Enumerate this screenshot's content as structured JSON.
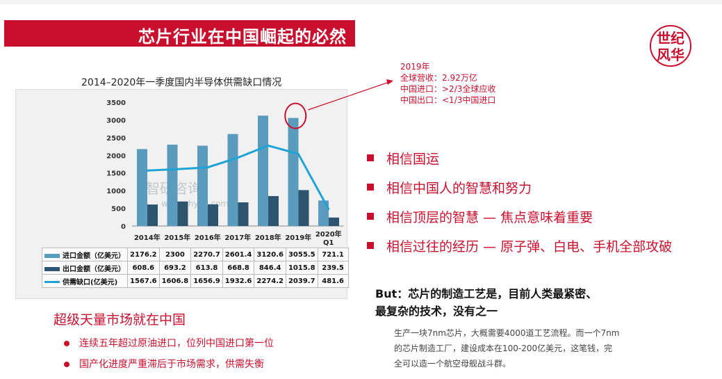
{
  "header": {
    "title": "芯片行业在中国崛起的必然",
    "logo_text_1": "世纪",
    "logo_text_2": "风华"
  },
  "chart_data": {
    "type": "bar",
    "title": "2014–2020年一季度国内半导体供需缺口情况",
    "categories": [
      "2014年",
      "2015年",
      "2016年",
      "2017年",
      "2018年",
      "2019年",
      "2020年Q1"
    ],
    "category_labels": [
      [
        "2014年"
      ],
      [
        "2015年"
      ],
      [
        "2016年"
      ],
      [
        "2017年"
      ],
      [
        "2018年"
      ],
      [
        "2019年"
      ],
      [
        "2020年",
        "Q1"
      ]
    ],
    "series": [
      {
        "name": "进口金额（亿美元）",
        "type": "bar",
        "color": "#5b9bbd",
        "values": [
          2176.2,
          2300,
          2270.7,
          2601.4,
          3120.6,
          3055.5,
          721.1
        ]
      },
      {
        "name": "出口金额（亿美元）",
        "type": "bar",
        "color": "#2f5470",
        "values": [
          608.6,
          693.2,
          613.8,
          668.8,
          846.4,
          1015.8,
          239.5
        ]
      },
      {
        "name": "供需缺口(亿美元)",
        "type": "line",
        "color": "#1ea3d6",
        "values": [
          1567.6,
          1606.8,
          1656.9,
          1932.6,
          2274.2,
          2039.7,
          481.6
        ]
      }
    ],
    "value_labels": [
      [
        "2176.2",
        "2300",
        "2270.7",
        "2601.4",
        "3120.6",
        "3055.5",
        "721.1"
      ],
      [
        "608.6",
        "693.2",
        "613.8",
        "668.8",
        "846.4",
        "1015.8",
        "239.5"
      ],
      [
        "1567.6",
        "1606.8",
        "1656.9",
        "1932.6",
        "2274.2",
        "2039.7",
        "481.6"
      ]
    ],
    "yticks": [
      "3500",
      "3000",
      "2500",
      "2000",
      "1500",
      "1000",
      "500",
      "0"
    ],
    "ylim": [
      0,
      3500
    ],
    "grid": false,
    "watermark_1": "智研咨询",
    "watermark_2": "www.chyxx.com",
    "highlight_category": "2019年"
  },
  "annotation": {
    "lines": [
      "2019年",
      "全球营收：2.92万亿",
      "中国进口：>2/3全球应收",
      "中国出口：<1/3中国进口"
    ]
  },
  "beliefs": [
    "相信国运",
    "相信中国人的智慧和努力",
    "相信顶层的智慧 — 焦点意味着重要",
    "相信过往的经历 — 原子弹、白电、手机全部攻破"
  ],
  "market": {
    "heading": "超级天量市场就在中国",
    "points": [
      "连续五年超过原油进口，位列中国进口第一位",
      "国产化进度严重滞后于市场需求，供需失衡"
    ]
  },
  "but": {
    "line1": "But：芯片的制造工艺是，目前人类最紧密、",
    "line2": "最复杂的技术，没有之一"
  },
  "description": {
    "lines": [
      "生产一块7nm芯片，大概需要4000道工艺流程。而一个7nm",
      "的芯片制造工厂，建设成本在100-200亿美元，这笔钱，完",
      "全可以造一个航空母舰战斗群。"
    ]
  }
}
